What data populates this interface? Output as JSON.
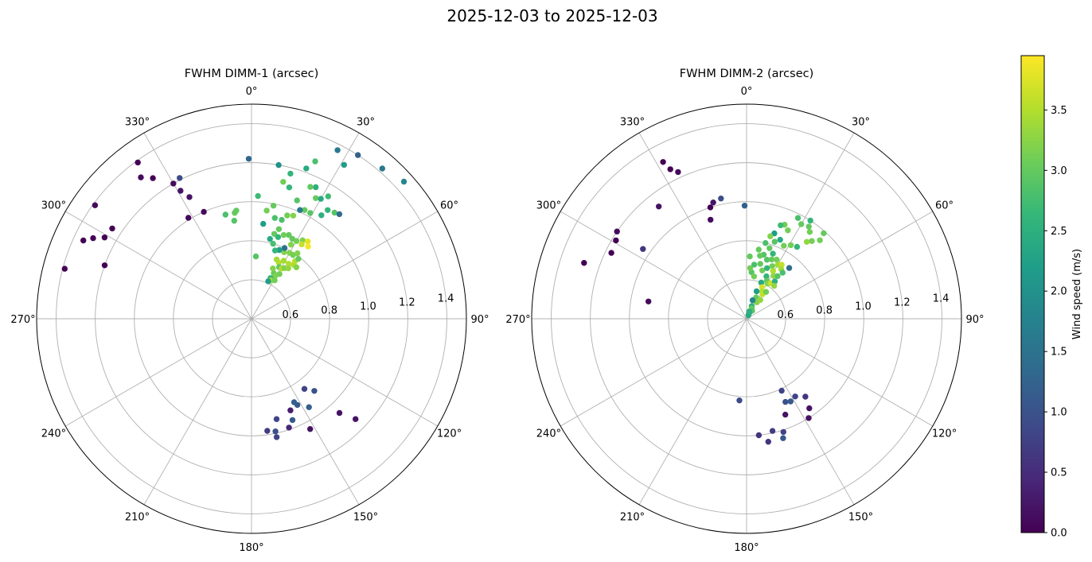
{
  "title": "2025-12-03 to 2025-12-03",
  "colorbar": {
    "label": "Wind speed (m/s)",
    "min": 0.0,
    "max": 3.95,
    "ticks": [
      "0.0",
      "0.5",
      "1.0",
      "1.5",
      "2.0",
      "2.5",
      "3.0",
      "3.5"
    ],
    "colormap": "viridis"
  },
  "chart_data": [
    {
      "type": "scatter",
      "projection": "polar",
      "title": "FWHM DIMM-1 (arcsec)",
      "theta_direction": "clockwise",
      "theta_zero": "north",
      "theta_ticks": [
        "0°",
        "30°",
        "60°",
        "90°",
        "120°",
        "150°",
        "180°",
        "210°",
        "240°",
        "270°",
        "300°",
        "330°"
      ],
      "r_ticks": [
        "0.6",
        "0.8",
        "1.0",
        "1.2",
        "1.4"
      ],
      "r_range": [
        0.4,
        1.5
      ],
      "grid": true,
      "point_fields": [
        "theta_deg",
        "fwhm_arcsec",
        "wind_speed_ms"
      ],
      "points": [
        [
          33,
          1.4,
          1.2
        ],
        [
          41,
          1.42,
          1.6
        ],
        [
          48,
          1.45,
          1.8
        ],
        [
          27,
          1.37,
          1.6
        ],
        [
          31,
          1.32,
          2.2
        ],
        [
          22,
          1.27,
          2.8
        ],
        [
          20,
          1.22,
          2.4
        ],
        [
          15,
          1.17,
          2.6
        ],
        [
          10,
          1.2,
          2.0
        ],
        [
          13,
          1.12,
          3.1
        ],
        [
          3,
          1.03,
          2.7
        ],
        [
          8,
          0.96,
          3.1
        ],
        [
          16,
          1.1,
          2.6
        ],
        [
          21,
          1.05,
          2.9
        ],
        [
          26,
          1.15,
          2.5
        ],
        [
          24,
          1.14,
          3.0
        ],
        [
          28,
          1.1,
          3.0
        ],
        [
          30,
          1.11,
          2.4
        ],
        [
          32,
          1.14,
          2.7
        ],
        [
          35,
          1.08,
          2.6
        ],
        [
          38,
          1.09,
          2.9
        ],
        [
          40,
          1.1,
          1.4
        ],
        [
          34,
          1.04,
          2.5
        ],
        [
          29,
          1.02,
          2.9
        ],
        [
          26,
          1.02,
          3.0
        ],
        [
          24,
          1.01,
          1.6
        ],
        [
          22,
          0.97,
          3.2
        ],
        [
          19,
          0.96,
          3.1
        ],
        [
          17,
          0.93,
          2.8
        ],
        [
          13,
          0.93,
          2.8
        ],
        [
          11,
          0.99,
          3.0
        ],
        [
          7,
          0.89,
          2.2
        ],
        [
          17,
          0.88,
          3.0
        ],
        [
          13,
          0.82,
          2.4
        ],
        [
          15,
          0.85,
          3.0
        ],
        [
          18,
          0.84,
          2.6
        ],
        [
          21,
          0.86,
          3.1
        ],
        [
          24,
          0.87,
          3.0
        ],
        [
          27,
          0.86,
          3.0
        ],
        [
          30,
          0.86,
          3.1
        ],
        [
          33,
          0.88,
          3.2
        ],
        [
          36,
          0.89,
          3.8
        ],
        [
          38,
          0.87,
          3.9
        ],
        [
          34,
          0.86,
          3.6
        ],
        [
          28,
          0.83,
          3.2
        ],
        [
          26,
          0.78,
          3.2
        ],
        [
          30,
          0.79,
          3.2
        ],
        [
          33,
          0.79,
          3.1
        ],
        [
          35,
          0.81,
          3.2
        ],
        [
          37,
          0.77,
          3.5
        ],
        [
          38,
          0.79,
          3.0
        ],
        [
          29,
          0.74,
          3.4
        ],
        [
          34,
          0.74,
          3.5
        ],
        [
          38,
          0.75,
          3.5
        ],
        [
          41,
          0.75,
          3.2
        ],
        [
          25,
          0.8,
          1.5
        ],
        [
          22,
          0.78,
          2.2
        ],
        [
          19,
          0.77,
          2.6
        ],
        [
          16,
          0.8,
          2.8
        ],
        [
          23,
          0.73,
          3.4
        ],
        [
          26,
          0.72,
          3.5
        ],
        [
          28,
          0.7,
          3.0
        ],
        [
          31,
          0.7,
          3.5
        ],
        [
          33,
          0.71,
          3.2
        ],
        [
          36,
          0.72,
          3.3
        ],
        [
          26,
          0.66,
          3.0
        ],
        [
          29,
          0.65,
          3.2
        ],
        [
          32,
          0.67,
          3.1
        ],
        [
          23,
          0.68,
          3.2
        ],
        [
          25,
          0.63,
          2.6
        ],
        [
          27,
          0.62,
          3.5
        ],
        [
          31,
          0.63,
          3.1
        ],
        [
          24,
          0.61,
          2.2
        ],
        [
          4,
          0.72,
          2.9
        ],
        [
          352,
          0.96,
          3.0
        ],
        [
          350,
          0.91,
          2.9
        ],
        [
          346,
          0.95,
          2.8
        ],
        [
          351,
          0.95,
          3.0
        ],
        [
          359,
          1.22,
          1.3
        ],
        [
          324,
          1.39,
          0.0
        ],
        [
          325,
          1.28,
          0.0
        ],
        [
          333,
          1.21,
          0.9
        ],
        [
          330,
          1.2,
          0.1
        ],
        [
          322,
          1.32,
          0.1
        ],
        [
          306,
          1.39,
          0.1
        ],
        [
          303,
          1.25,
          0.0
        ],
        [
          299,
          1.26,
          0.0
        ],
        [
          295,
          1.35,
          0.0
        ],
        [
          290,
          1.2,
          0.0
        ],
        [
          336,
          1.0,
          0.1
        ],
        [
          333,
          1.1,
          0.2
        ],
        [
          328,
          1.01,
          0.1
        ],
        [
          331,
          1.15,
          0.2
        ],
        [
          297,
          1.31,
          0.0
        ],
        [
          285,
          1.39,
          0.0
        ],
        [
          139,
          0.89,
          1.0
        ],
        [
          143,
          0.85,
          0.8
        ],
        [
          147,
          0.94,
          1.2
        ],
        [
          152,
          0.9,
          1.1
        ],
        [
          153,
          0.88,
          1.2
        ],
        [
          157,
          0.91,
          0.3
        ],
        [
          161,
          0.99,
          0.4
        ],
        [
          158,
          0.96,
          1.1
        ],
        [
          152,
          1.04,
          0.2
        ],
        [
          137,
          1.06,
          0.2
        ],
        [
          134,
          1.14,
          0.2
        ],
        [
          168,
          1.02,
          0.8
        ],
        [
          166,
          0.93,
          0.8
        ],
        [
          172,
          0.98,
          0.7
        ],
        [
          168,
          0.99,
          1.0
        ]
      ]
    },
    {
      "type": "scatter",
      "projection": "polar",
      "title": "FWHM DIMM-2 (arcsec)",
      "theta_direction": "clockwise",
      "theta_zero": "north",
      "theta_ticks": [
        "0°",
        "30°",
        "60°",
        "90°",
        "120°",
        "150°",
        "180°",
        "210°",
        "240°",
        "270°",
        "300°",
        "330°"
      ],
      "r_ticks": [
        "0.6",
        "0.8",
        "1.0",
        "1.2",
        "1.4"
      ],
      "r_range": [
        0.4,
        1.5
      ],
      "grid": true,
      "point_fields": [
        "theta_deg",
        "fwhm_arcsec",
        "wind_speed_ms"
      ],
      "points": [
        [
          42,
          0.99,
          3.0
        ],
        [
          40,
          0.92,
          3.1
        ],
        [
          38,
          0.9,
          3.3
        ],
        [
          36,
          0.95,
          3.1
        ],
        [
          34,
          0.97,
          3.0
        ],
        [
          33,
          1.0,
          2.6
        ],
        [
          30,
          0.96,
          3.0
        ],
        [
          27,
          0.98,
          2.8
        ],
        [
          25,
          0.9,
          3.1
        ],
        [
          22,
          0.92,
          3.1
        ],
        [
          20,
          0.91,
          2.7
        ],
        [
          43,
          0.95,
          3.1
        ],
        [
          18,
          0.86,
          2.2
        ],
        [
          16,
          0.84,
          3.2
        ],
        [
          20,
          0.82,
          2.9
        ],
        [
          23,
          0.84,
          2.4
        ],
        [
          14,
          0.8,
          2.8
        ],
        [
          18,
          0.78,
          3.0
        ],
        [
          22,
          0.76,
          2.6
        ],
        [
          27,
          0.82,
          3.1
        ],
        [
          31,
          0.84,
          3.1
        ],
        [
          35,
          0.85,
          2.6
        ],
        [
          15,
          0.74,
          2.9
        ],
        [
          19,
          0.72,
          2.9
        ],
        [
          23,
          0.73,
          3.0
        ],
        [
          27,
          0.74,
          3.1
        ],
        [
          12,
          0.73,
          3.0
        ],
        [
          10,
          0.76,
          3.0
        ],
        [
          14,
          0.69,
          3.0
        ],
        [
          18,
          0.66,
          3.1
        ],
        [
          22,
          0.68,
          2.6
        ],
        [
          26,
          0.7,
          3.1
        ],
        [
          30,
          0.72,
          3.4
        ],
        [
          33,
          0.73,
          3.6
        ],
        [
          35,
          0.71,
          3.4
        ],
        [
          38,
          0.7,
          2.8
        ],
        [
          40,
          0.74,
          1.4
        ],
        [
          29,
          0.68,
          3.5
        ],
        [
          32,
          0.66,
          3.3
        ],
        [
          36,
          0.67,
          2.9
        ],
        [
          25,
          0.64,
          2.6
        ],
        [
          28,
          0.62,
          3.0
        ],
        [
          31,
          0.61,
          3.2
        ],
        [
          34,
          0.62,
          3.6
        ],
        [
          37,
          0.64,
          2.5
        ],
        [
          22,
          0.6,
          2.4
        ],
        [
          26,
          0.58,
          3.7
        ],
        [
          30,
          0.56,
          3.5
        ],
        [
          33,
          0.55,
          3.6
        ],
        [
          36,
          0.57,
          3.1
        ],
        [
          40,
          0.62,
          3.3
        ],
        [
          20,
          0.55,
          2.2
        ],
        [
          24,
          0.52,
          3.0
        ],
        [
          28,
          0.5,
          3.1
        ],
        [
          32,
          0.5,
          3.2
        ],
        [
          36,
          0.52,
          3.3
        ],
        [
          18,
          0.5,
          1.8
        ],
        [
          22,
          0.47,
          2.5
        ],
        [
          26,
          0.46,
          3.0
        ],
        [
          30,
          0.45,
          3.2
        ],
        [
          35,
          0.45,
          2.9
        ],
        [
          24,
          0.43,
          2.0
        ],
        [
          28,
          0.42,
          2.4
        ],
        [
          20,
          0.44,
          2.5
        ],
        [
          8,
          0.68,
          2.8
        ],
        [
          6,
          0.64,
          2.9
        ],
        [
          10,
          0.62,
          3.1
        ],
        [
          4,
          0.66,
          3.1
        ],
        [
          3,
          0.72,
          3.0
        ],
        [
          359,
          0.98,
          1.2
        ],
        [
          332,
          1.31,
          0.0
        ],
        [
          335,
          1.23,
          0.1
        ],
        [
          333,
          1.26,
          0.0
        ],
        [
          322,
          1.13,
          0.2
        ],
        [
          344,
          1.02,
          0.2
        ],
        [
          342,
          1.0,
          0.0
        ],
        [
          348,
          1.03,
          0.9
        ],
        [
          340,
          0.94,
          0.1
        ],
        [
          304,
          1.2,
          0.1
        ],
        [
          301,
          1.18,
          0.0
        ],
        [
          304,
          1.04,
          0.6
        ],
        [
          296,
          1.17,
          0.0
        ],
        [
          289,
          1.28,
          0.0
        ],
        [
          280,
          0.91,
          0.1
        ],
        [
          154,
          0.81,
          0.8
        ],
        [
          152,
          0.88,
          1.1
        ],
        [
          155,
          0.87,
          1.0
        ],
        [
          148,
          0.87,
          0.8
        ],
        [
          143,
          0.9,
          0.6
        ],
        [
          145,
          0.96,
          0.2
        ],
        [
          148,
          1.0,
          0.2
        ],
        [
          158,
          0.93,
          0.2
        ],
        [
          162,
          1.01,
          0.8
        ],
        [
          167,
          0.99,
          0.7
        ],
        [
          163,
          1.04,
          1.1
        ],
        [
          170,
          1.04,
          0.6
        ],
        [
          174,
          1.0,
          0.6
        ],
        [
          185,
          0.82,
          0.9
        ]
      ]
    }
  ]
}
